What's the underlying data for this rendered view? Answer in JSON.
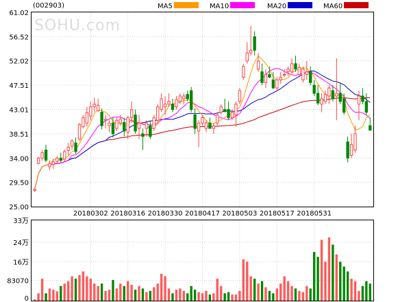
{
  "chart_data": [
    {
      "type": "candlestick",
      "title": "(002903)",
      "watermark": "SOHU.com",
      "legend": [
        {
          "name": "MA5",
          "color": "#ff9900"
        },
        {
          "name": "MA10",
          "color": "#ff00ff"
        },
        {
          "name": "MA20",
          "color": "#0000cc"
        },
        {
          "name": "MA60",
          "color": "#cc0000"
        }
      ],
      "up_color": "#ff4444",
      "down_color": "#008800",
      "ylim": [
        25.0,
        61.02
      ],
      "y_ticks": [
        "61.02",
        "56.52",
        "52.02",
        "47.51",
        "43.01",
        "38.51",
        "34.00",
        "29.50",
        "25.00"
      ],
      "x_ticks": [
        {
          "label": "20180302",
          "index": 15
        },
        {
          "label": "20180316",
          "index": 25
        },
        {
          "label": "20180330",
          "index": 35
        },
        {
          "label": "20180417",
          "index": 45
        },
        {
          "label": "20180503",
          "index": 55
        },
        {
          "label": "20180517",
          "index": 65
        },
        {
          "label": "20180531",
          "index": 75
        }
      ],
      "ohlc": [
        [
          28.0,
          28.4,
          27.7,
          28.2
        ],
        [
          33.0,
          34.2,
          32.8,
          34.0
        ],
        [
          34.0,
          35.5,
          33.5,
          35.0
        ],
        [
          35.5,
          36.5,
          33.2,
          33.6
        ],
        [
          32.4,
          33.6,
          31.8,
          33.0
        ],
        [
          32.8,
          33.8,
          32.0,
          33.3
        ],
        [
          33.4,
          34.4,
          32.9,
          34.0
        ],
        [
          34.0,
          35.0,
          33.2,
          33.6
        ],
        [
          33.8,
          35.6,
          33.4,
          35.2
        ],
        [
          35.4,
          36.8,
          34.5,
          36.0
        ],
        [
          36.2,
          37.5,
          35.5,
          37.2
        ],
        [
          36.8,
          37.8,
          34.8,
          35.2
        ],
        [
          37.5,
          40.5,
          37.2,
          40.2
        ],
        [
          39.8,
          42.0,
          39.5,
          41.5
        ],
        [
          40.5,
          43.5,
          39.8,
          42.4
        ],
        [
          41.8,
          44.5,
          41.0,
          43.5
        ],
        [
          43.5,
          45.2,
          42.6,
          44.0
        ],
        [
          42.8,
          45.0,
          42.5,
          43.8
        ],
        [
          42.5,
          43.2,
          39.3,
          40.0
        ],
        [
          41.0,
          42.0,
          39.5,
          41.2
        ],
        [
          40.0,
          41.0,
          38.8,
          40.5
        ],
        [
          40.5,
          41.5,
          37.8,
          38.5
        ],
        [
          39.5,
          41.5,
          39.0,
          41.0
        ],
        [
          40.5,
          42.0,
          40.0,
          41.2
        ],
        [
          40.6,
          41.5,
          38.0,
          39.0
        ],
        [
          38.8,
          41.8,
          37.5,
          41.5
        ],
        [
          41.5,
          44.5,
          40.5,
          43.0
        ],
        [
          42.0,
          43.0,
          38.5,
          39.0
        ],
        [
          39.5,
          42.0,
          37.5,
          40.5
        ],
        [
          38.5,
          39.5,
          35.5,
          38.0
        ],
        [
          39.5,
          41.0,
          38.0,
          40.5
        ],
        [
          40.0,
          41.0,
          37.5,
          38.0
        ],
        [
          39.5,
          42.0,
          39.0,
          41.5
        ],
        [
          41.0,
          44.0,
          40.5,
          43.5
        ],
        [
          43.0,
          46.0,
          42.5,
          45.0
        ],
        [
          43.5,
          45.5,
          42.0,
          44.0
        ],
        [
          44.0,
          46.0,
          43.5,
          44.5
        ],
        [
          44.0,
          45.0,
          42.5,
          43.0
        ],
        [
          43.5,
          45.5,
          43.0,
          44.8
        ],
        [
          44.5,
          46.0,
          44.0,
          45.5
        ],
        [
          45.0,
          46.0,
          44.0,
          45.5
        ],
        [
          45.8,
          46.5,
          44.5,
          45.0
        ],
        [
          46.5,
          47.2,
          42.5,
          43.0
        ],
        [
          42.0,
          43.2,
          38.5,
          39.5
        ],
        [
          39.0,
          41.0,
          36.0,
          40.5
        ],
        [
          40.5,
          42.0,
          40.0,
          41.5
        ],
        [
          39.5,
          41.0,
          38.8,
          40.5
        ],
        [
          40.5,
          41.5,
          39.5,
          39.5
        ],
        [
          39.5,
          40.5,
          38.5,
          40.0
        ],
        [
          40.5,
          42.5,
          40.0,
          42.0
        ],
        [
          42.5,
          44.0,
          42.0,
          43.5
        ],
        [
          43.0,
          45.0,
          42.5,
          42.6
        ],
        [
          43.0,
          44.5,
          41.0,
          41.5
        ],
        [
          41.5,
          43.0,
          41.0,
          42.5
        ],
        [
          42.0,
          44.5,
          39.8,
          44.0
        ],
        [
          44.5,
          47.0,
          44.0,
          46.5
        ],
        [
          49.0,
          51.5,
          48.5,
          51.0
        ],
        [
          52.0,
          55.5,
          51.5,
          53.5
        ],
        [
          53.5,
          58.5,
          53.0,
          54.0
        ],
        [
          56.5,
          57.5,
          53.0,
          54.0
        ],
        [
          50.5,
          53.5,
          50.0,
          52.0
        ],
        [
          50.0,
          51.5,
          47.5,
          48.0
        ],
        [
          48.0,
          50.5,
          47.0,
          49.5
        ],
        [
          49.5,
          51.0,
          48.8,
          49.0
        ],
        [
          48.5,
          50.0,
          46.8,
          47.0
        ],
        [
          47.0,
          49.0,
          46.5,
          48.5
        ],
        [
          48.5,
          50.0,
          47.8,
          49.0
        ],
        [
          49.5,
          50.5,
          49.0,
          49.5
        ],
        [
          50.0,
          51.0,
          49.2,
          50.5
        ],
        [
          50.0,
          52.5,
          49.8,
          51.5
        ],
        [
          51.5,
          53.0,
          50.0,
          50.5
        ],
        [
          49.5,
          51.5,
          49.0,
          50.8
        ],
        [
          48.5,
          51.0,
          48.0,
          50.5
        ],
        [
          49.5,
          52.0,
          48.5,
          50.0
        ],
        [
          50.0,
          51.0,
          47.5,
          48.0
        ],
        [
          47.5,
          48.5,
          45.5,
          46.0
        ],
        [
          46.0,
          47.5,
          43.8,
          44.2
        ],
        [
          44.0,
          46.0,
          42.5,
          45.0
        ],
        [
          44.5,
          46.5,
          44.0,
          45.8
        ],
        [
          45.5,
          47.5,
          44.0,
          47.0
        ],
        [
          46.5,
          47.5,
          44.5,
          45.0
        ],
        [
          45.5,
          52.5,
          41.0,
          46.0
        ],
        [
          46.0,
          48.0,
          44.0,
          44.5
        ],
        [
          45.0,
          46.0,
          42.0,
          42.5
        ],
        [
          37.0,
          38.0,
          33.2,
          34.0
        ],
        [
          34.5,
          38.5,
          34.0,
          36.5
        ],
        [
          35.5,
          40.0,
          35.0,
          38.5
        ],
        [
          44.0,
          46.5,
          41.0,
          45.5
        ],
        [
          45.5,
          47.0,
          44.0,
          44.5
        ],
        [
          44.5,
          46.0,
          42.0,
          42.5
        ],
        [
          40.0,
          41.5,
          39.0,
          39.2
        ]
      ],
      "volume_ylim": [
        0,
        33
      ],
      "volume_ticks": [
        "33万",
        "24万",
        "16万",
        "83070",
        "0"
      ],
      "volume": [
        0.5,
        3.0,
        9.0,
        3.0,
        5.0,
        4.5,
        3.8,
        6.0,
        7.0,
        8.0,
        10.0,
        9.0,
        10.5,
        12.0,
        10.0,
        9.0,
        7.0,
        6.0,
        7.0,
        4.0,
        4.5,
        8.5,
        5.0,
        7.0,
        6.0,
        8.0,
        6.5,
        4.5,
        6.0,
        5.0,
        3.5,
        4.0,
        5.5,
        7.0,
        11.0,
        10.0,
        5.0,
        3.0,
        4.5,
        5.0,
        4.0,
        3.0,
        6.0,
        4.5,
        3.5,
        3.0,
        4.0,
        2.5,
        3.0,
        9.0,
        6.0,
        3.0,
        3.5,
        2.5,
        2.5,
        4.0,
        17.0,
        16.0,
        10.0,
        9.0,
        7.0,
        8.0,
        5.5,
        4.0,
        3.0,
        5.0,
        7.0,
        10.0,
        8.0,
        6.0,
        5.0,
        4.0,
        3.5,
        6.0,
        5.0,
        20.0,
        18.0,
        25.0,
        16.0,
        26.0,
        23.0,
        19.0,
        16.0,
        14.0,
        12.0,
        9.0,
        8.0,
        4.0,
        6.0,
        8.0,
        7.0
      ]
    }
  ]
}
